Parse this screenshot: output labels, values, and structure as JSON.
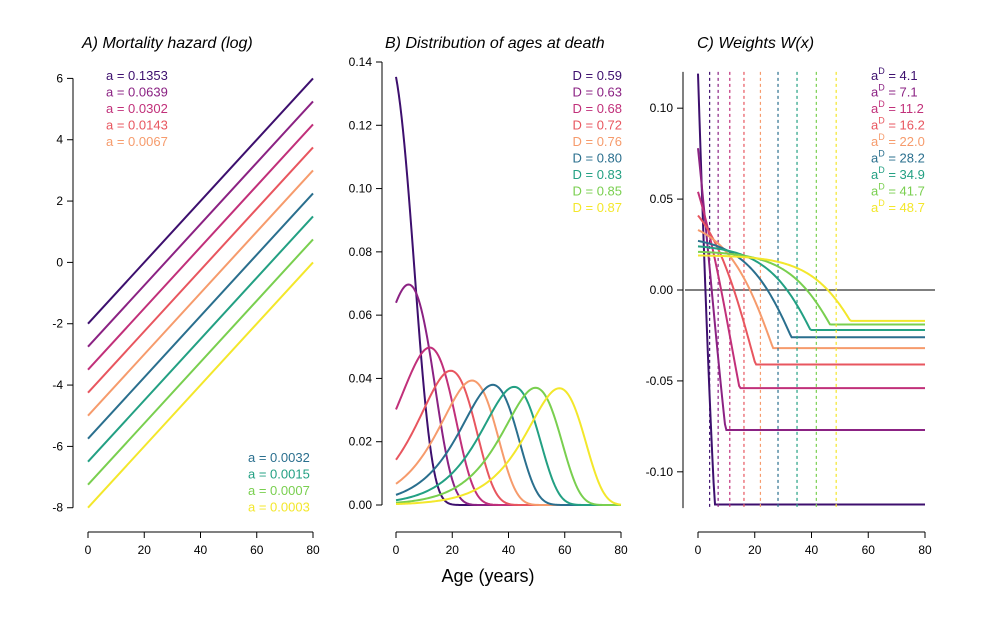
{
  "xlabel": "Age (years)",
  "colors": [
    "#3d0f6e",
    "#8b2283",
    "#c1307a",
    "#e8565f",
    "#f69b6c",
    "#2a6f8e",
    "#23a083",
    "#79cf4f",
    "#f3e72b"
  ],
  "chart_data": [
    {
      "type": "line",
      "title": "A) Mortality hazard (log)",
      "xlim": [
        0,
        80
      ],
      "ylim": [
        -8.4,
        6.6
      ],
      "xticks": [
        "0",
        "20",
        "40",
        "60",
        "80"
      ],
      "yticks": [
        "6",
        "4",
        "2",
        "0",
        "-2",
        "-4",
        "-6",
        "-8"
      ],
      "legend_top": [
        "a = 0.1353",
        "a = 0.0639",
        "a = 0.0302",
        "a = 0.0143",
        "a = 0.0067"
      ],
      "legend_bottom": [
        "a = 0.0032",
        "a = 0.0015",
        "a = 0.0007",
        "a = 0.0003"
      ],
      "slope_b": 0.1,
      "series": [
        {
          "name": "a = 0.1353",
          "a": 0.1353,
          "x": [
            0,
            80
          ],
          "y": [
            -2.0,
            6.0
          ]
        },
        {
          "name": "a = 0.0639",
          "a": 0.0639,
          "x": [
            0,
            80
          ],
          "y": [
            -2.75,
            5.25
          ]
        },
        {
          "name": "a = 0.0302",
          "a": 0.0302,
          "x": [
            0,
            80
          ],
          "y": [
            -3.5,
            4.5
          ]
        },
        {
          "name": "a = 0.0143",
          "a": 0.0143,
          "x": [
            0,
            80
          ],
          "y": [
            -4.25,
            3.75
          ]
        },
        {
          "name": "a = 0.0067",
          "a": 0.0067,
          "x": [
            0,
            80
          ],
          "y": [
            -5.0,
            3.0
          ]
        },
        {
          "name": "a = 0.0032",
          "a": 0.0032,
          "x": [
            0,
            80
          ],
          "y": [
            -5.75,
            2.25
          ]
        },
        {
          "name": "a = 0.0015",
          "a": 0.0015,
          "x": [
            0,
            80
          ],
          "y": [
            -6.5,
            1.5
          ]
        },
        {
          "name": "a = 0.0007",
          "a": 0.0007,
          "x": [
            0,
            80
          ],
          "y": [
            -7.25,
            0.75
          ]
        },
        {
          "name": "a = 0.0003",
          "a": 0.0003,
          "x": [
            0,
            80
          ],
          "y": [
            -8.0,
            0.0
          ]
        }
      ]
    },
    {
      "type": "line",
      "title": "B) Distribution of ages at death",
      "xlim": [
        0,
        80
      ],
      "ylim": [
        0,
        0.14
      ],
      "xticks": [
        "0",
        "20",
        "40",
        "60",
        "80"
      ],
      "yticks": [
        "0.14",
        "0.12",
        "0.10",
        "0.08",
        "0.06",
        "0.04",
        "0.02",
        "0.00"
      ],
      "legend": [
        "D = 0.59",
        "D = 0.63",
        "D = 0.68",
        "D = 0.72",
        "D = 0.76",
        "D = 0.80",
        "D = 0.83",
        "D = 0.85",
        "D = 0.87"
      ],
      "series": [
        {
          "name": "D = 0.59",
          "peak_age": 0.0,
          "peak_density": 0.1353
        },
        {
          "name": "D = 0.63",
          "peak_age": 4.7,
          "peak_density": 0.0696
        },
        {
          "name": "D = 0.68",
          "peak_age": 12.0,
          "peak_density": 0.0497
        },
        {
          "name": "D = 0.72",
          "peak_age": 19.5,
          "peak_density": 0.0424
        },
        {
          "name": "D = 0.76",
          "peak_age": 27.0,
          "peak_density": 0.0393
        },
        {
          "name": "D = 0.80",
          "peak_age": 34.5,
          "peak_density": 0.038
        },
        {
          "name": "D = 0.83",
          "peak_age": 42.0,
          "peak_density": 0.0374
        },
        {
          "name": "D = 0.85",
          "peak_age": 49.5,
          "peak_density": 0.0371
        },
        {
          "name": "D = 0.87",
          "peak_age": 57.0,
          "peak_density": 0.037
        }
      ]
    },
    {
      "type": "line",
      "title": "C) Weights W(x)",
      "xlim": [
        0,
        80
      ],
      "ylim": [
        -0.1265,
        0.1265
      ],
      "xticks": [
        "0",
        "20",
        "40",
        "60",
        "80"
      ],
      "yticks": [
        "0.10",
        "0.05",
        "0.00",
        "-0.05",
        "-0.10"
      ],
      "legend": [
        "aD = 4.1",
        "aD = 7.1",
        "aD = 11.2",
        "aD = 16.2",
        "aD = 22.0",
        "aD = 28.2",
        "aD = 34.9",
        "aD = 41.7",
        "aD = 48.7"
      ],
      "series": [
        {
          "name": "aD = 4.1",
          "aD": 4.1,
          "start": 0.119,
          "end": -0.118
        },
        {
          "name": "aD = 7.1",
          "aD": 7.1,
          "start": 0.078,
          "end": -0.077
        },
        {
          "name": "aD = 11.2",
          "aD": 11.2,
          "start": 0.054,
          "end": -0.054
        },
        {
          "name": "aD = 16.2",
          "aD": 16.2,
          "start": 0.041,
          "end": -0.041
        },
        {
          "name": "aD = 22.0",
          "aD": 22.0,
          "start": 0.033,
          "end": -0.032
        },
        {
          "name": "aD = 28.2",
          "aD": 28.2,
          "start": 0.027,
          "end": -0.026
        },
        {
          "name": "aD = 34.9",
          "aD": 34.9,
          "start": 0.024,
          "end": -0.022
        },
        {
          "name": "aD = 41.7",
          "aD": 41.7,
          "start": 0.021,
          "end": -0.019
        },
        {
          "name": "aD = 48.7",
          "aD": 48.7,
          "start": 0.019,
          "end": -0.017
        }
      ]
    }
  ]
}
